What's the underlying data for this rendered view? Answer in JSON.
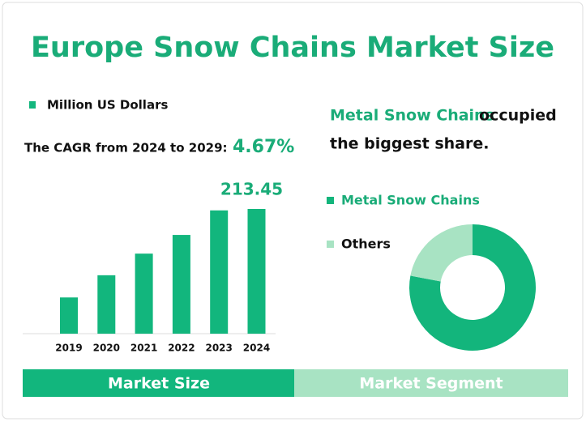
{
  "header": {
    "title": "Europe Snow Chains Market Size"
  },
  "cagr": {
    "label": "The CAGR from 2024 to 2029:",
    "value": "4.67%"
  },
  "headline": {
    "rest_line1": "occupied",
    "rest_line2": "the biggest share."
  },
  "tabs": [
    "Market Size",
    "Market Segment"
  ],
  "chart_data": [
    {
      "type": "bar",
      "categories": [
        "2019",
        "2020",
        "2021",
        "2022",
        "2023",
        "2024"
      ],
      "series": [
        {
          "name": "Million US Dollars",
          "color": "#12b67d",
          "values": [
            62,
            100,
            137,
            169,
            211,
            213.45
          ]
        }
      ]
    },
    {
      "type": "pie",
      "categories": [
        "Metal Snow Chains",
        "Others"
      ],
      "values": [
        78,
        22
      ],
      "colors": [
        "#13b57c",
        "#a8e3c3"
      ],
      "donut": true
    }
  ]
}
